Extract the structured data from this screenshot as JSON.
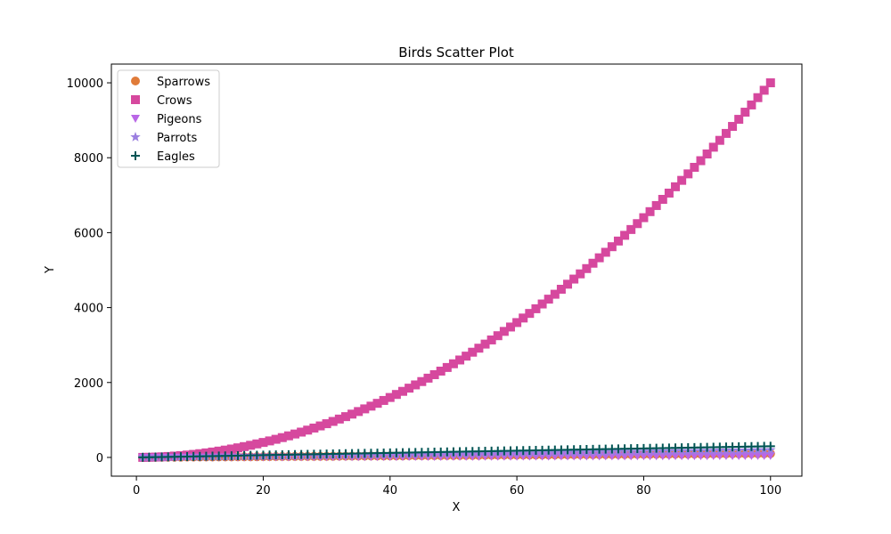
{
  "chart_data": {
    "type": "scatter",
    "title": "Birds Scatter Plot",
    "xlabel": "X",
    "ylabel": "Y",
    "xlim": [
      -3.95,
      104.95
    ],
    "ylim": [
      -499.9,
      10499.95
    ],
    "xticks": [
      0,
      20,
      40,
      60,
      80,
      100
    ],
    "yticks": [
      0,
      2000,
      4000,
      6000,
      8000,
      10000
    ],
    "grid": false,
    "legend_position": "upper-left",
    "x_range": {
      "start": 1,
      "end": 100,
      "step": 1
    },
    "series": [
      {
        "name": "Sparrows",
        "marker": "circle",
        "color": "#e07b39",
        "formula": "y = x"
      },
      {
        "name": "Crows",
        "marker": "square",
        "color": "#d6489e",
        "formula": "y = x^2"
      },
      {
        "name": "Pigeons",
        "marker": "triangle-down",
        "color": "#b967e6",
        "formula": "y = x / 2"
      },
      {
        "name": "Parrots",
        "marker": "star",
        "color": "#9b7fe0",
        "formula": "y = 2x"
      },
      {
        "name": "Eagles",
        "marker": "plus",
        "color": "#005555",
        "formula": "y = 3x"
      }
    ]
  }
}
